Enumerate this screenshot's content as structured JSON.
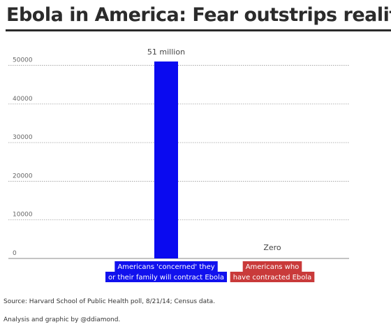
{
  "title": "Ebola in America: Fear outstrips reality",
  "source": "Source: Harvard School of Public Health poll, 8/21/14; Census data.",
  "credit": "Analysis and graphic by @ddiamond.",
  "chart_data": {
    "type": "bar",
    "title": "",
    "xlabel": "",
    "ylabel": "",
    "ylim": [
      0,
      53000
    ],
    "yticks": [
      0,
      10000,
      20000,
      30000,
      40000,
      50000
    ],
    "grid": true,
    "categories": [
      [
        "Americans 'concerned' they",
        "or their family will contract Ebola"
      ],
      [
        "Americans who",
        "have contracted Ebola"
      ]
    ],
    "values": [
      51000,
      0
    ],
    "value_labels": [
      "51 million",
      "Zero"
    ],
    "bar_color": "#0a0af0",
    "category_label_colors": [
      "#1111ee",
      "#c93a3a"
    ]
  }
}
